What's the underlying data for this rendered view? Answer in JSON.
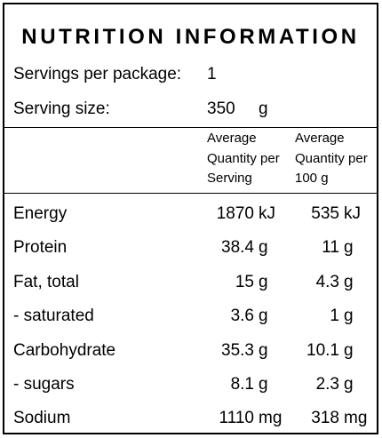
{
  "title": "NUTRITION INFORMATION",
  "servings": {
    "label": "Servings per package:",
    "value": "1"
  },
  "serving_size": {
    "label": "Serving size:",
    "value": "350",
    "unit": "g"
  },
  "columns": {
    "per_serving": "Average\nQuantity per\nServing",
    "per_100g": "Average\nQuantity per\n100 g"
  },
  "rows": [
    {
      "name": "Energy",
      "serving": "1870",
      "serving_unit": "kJ",
      "per100": "535",
      "per100_unit": "kJ"
    },
    {
      "name": "Protein",
      "serving": "38.4",
      "serving_unit": "g",
      "per100": "11",
      "per100_unit": "g"
    },
    {
      "name": "Fat, total",
      "serving": "15",
      "serving_unit": "g",
      "per100": "4.3",
      "per100_unit": "g"
    },
    {
      "name": "- saturated",
      "serving": "3.6",
      "serving_unit": "g",
      "per100": "1",
      "per100_unit": "g"
    },
    {
      "name": "Carbohydrate",
      "serving": "35.3",
      "serving_unit": "g",
      "per100": "10.1",
      "per100_unit": "g"
    },
    {
      "name": "- sugars",
      "serving": "8.1",
      "serving_unit": "g",
      "per100": "2.3",
      "per100_unit": "g"
    },
    {
      "name": "Sodium",
      "serving": "1110",
      "serving_unit": "mg",
      "per100": "318",
      "per100_unit": "mg"
    }
  ]
}
